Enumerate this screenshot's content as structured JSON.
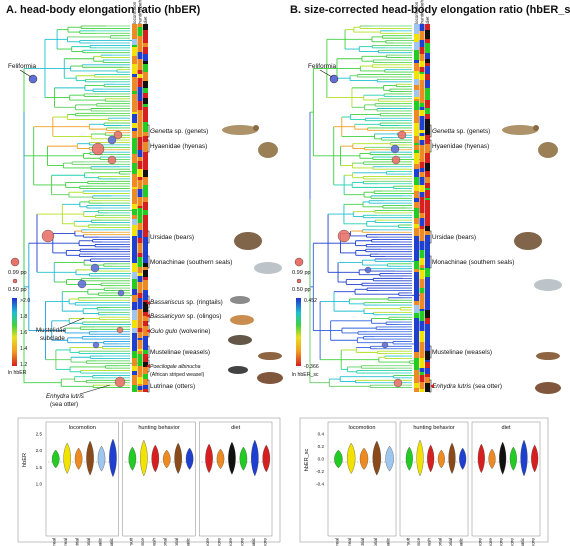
{
  "panels": [
    {
      "title": "A. head-body elongation ratio (hbER)",
      "colorbar": {
        "ticks": [
          ">2.0",
          "1.8",
          "1.6",
          "1.4",
          "1.2"
        ],
        "label": "ln hbER"
      },
      "clade_labels": [
        {
          "italic": "Genetta",
          "text": " sp. (genets)"
        },
        {
          "italic": "",
          "text": "Hyaenidae (hyenas)"
        },
        {
          "italic": "",
          "text": "Ursidae (bears)"
        },
        {
          "italic": "",
          "text": "Monachinae (southern seals)"
        },
        {
          "italic": "Bassariscus",
          "text": " sp. (ringtails)"
        },
        {
          "italic": "Bassaricyon",
          "text": " sp. (olingos)"
        },
        {
          "italic": "Gulo gulo",
          "text": " (wolverine)"
        },
        {
          "italic": "",
          "text": "Mustelinae (weasels)"
        },
        {
          "italic": "Poecilogale albinucha",
          "text": ""
        },
        {
          "italic": "",
          "text": "(African striped weasel)"
        },
        {
          "italic": "",
          "text": "Lutrinae (otters)"
        }
      ]
    },
    {
      "title": "B. size-corrected head-body elongation ratio (hbER_sc)",
      "colorbar": {
        "ticks": [
          "0.452",
          "-0.366"
        ],
        "label": "ln hbER_sc"
      },
      "clade_labels": [
        {
          "italic": "Genetta",
          "text": " sp. (genets)"
        },
        {
          "italic": "",
          "text": "Hyaenidae (hyenas)"
        },
        {
          "italic": "",
          "text": "Ursidae (bears)"
        },
        {
          "italic": "",
          "text": "Monachinae (southern seals)"
        },
        {
          "italic": "",
          "text": "Mustelinae (weasels)"
        },
        {
          "italic": "Enhydra lutris",
          "text": " (sea otter)"
        }
      ]
    }
  ],
  "trait_columns": [
    "locomotion",
    "hunting behavior",
    "diet"
  ],
  "feliformia": "Feliformia",
  "pp_legend": {
    "high": "0.99 pp",
    "low": "0.50 pp"
  },
  "mustelidae_subclade": [
    "Mustelidae",
    "subclade"
  ],
  "enhydra_note": {
    "italic": "Enhydra lutris",
    "text": "(sea otter)"
  },
  "violin_panels": [
    {
      "ylabel": "hbER",
      "yticks": [
        "1.0",
        "1.5",
        "2.0",
        "2.5"
      ],
      "groups": [
        {
          "title": "locomotion",
          "categories": [
            "arboreal",
            "semi-arboreal",
            "terrestrial",
            "semi-fossorial",
            "semi-aquatic",
            "aquatic"
          ]
        },
        {
          "title": "hunting behavior",
          "categories": [
            "pursuit",
            "pounce",
            "ambush",
            "occasional",
            "semi-fossorial",
            "aquatic"
          ]
        },
        {
          "title": "diet",
          "categories": [
            "carnivore",
            "omnivore",
            "insectivore",
            "herbivore",
            "aquatic",
            "carnivore"
          ]
        }
      ]
    },
    {
      "ylabel": "hbER_sc",
      "yticks": [
        "-0.4",
        "-0.2",
        "0.0",
        "0.2",
        "0.4"
      ],
      "groups": [
        {
          "title": "locomotion",
          "categories": [
            "arboreal",
            "semi-arboreal",
            "terrestrial",
            "semi-fossorial",
            "semi-aquatic"
          ]
        },
        {
          "title": "hunting behavior",
          "categories": [
            "pursuit",
            "pounce",
            "ambush",
            "occasional",
            "semi-fossorial",
            "aquatic"
          ]
        },
        {
          "title": "diet",
          "categories": [
            "carnivore",
            "omnivore",
            "insectivore",
            "herbivore",
            "aquatic",
            "carnivore"
          ]
        }
      ]
    }
  ],
  "colors": {
    "locomotion": [
      "#22cc22",
      "#f2e200",
      "#ee8a22",
      "#8a4a1a",
      "#9ec6ee",
      "#1f3fd0"
    ],
    "hunting": [
      "#22cc22",
      "#f2e200",
      "#d61f1f",
      "#ee8a22",
      "#8a4a1a",
      "#1f3fd0"
    ],
    "diet": [
      "#d61f1f",
      "#ee8a22",
      "#111111",
      "#22cc22",
      "#1f3fd0",
      "#d61f1f"
    ],
    "node_circle": "#e9736a",
    "node_circle_blue": "#5f6fd6"
  }
}
